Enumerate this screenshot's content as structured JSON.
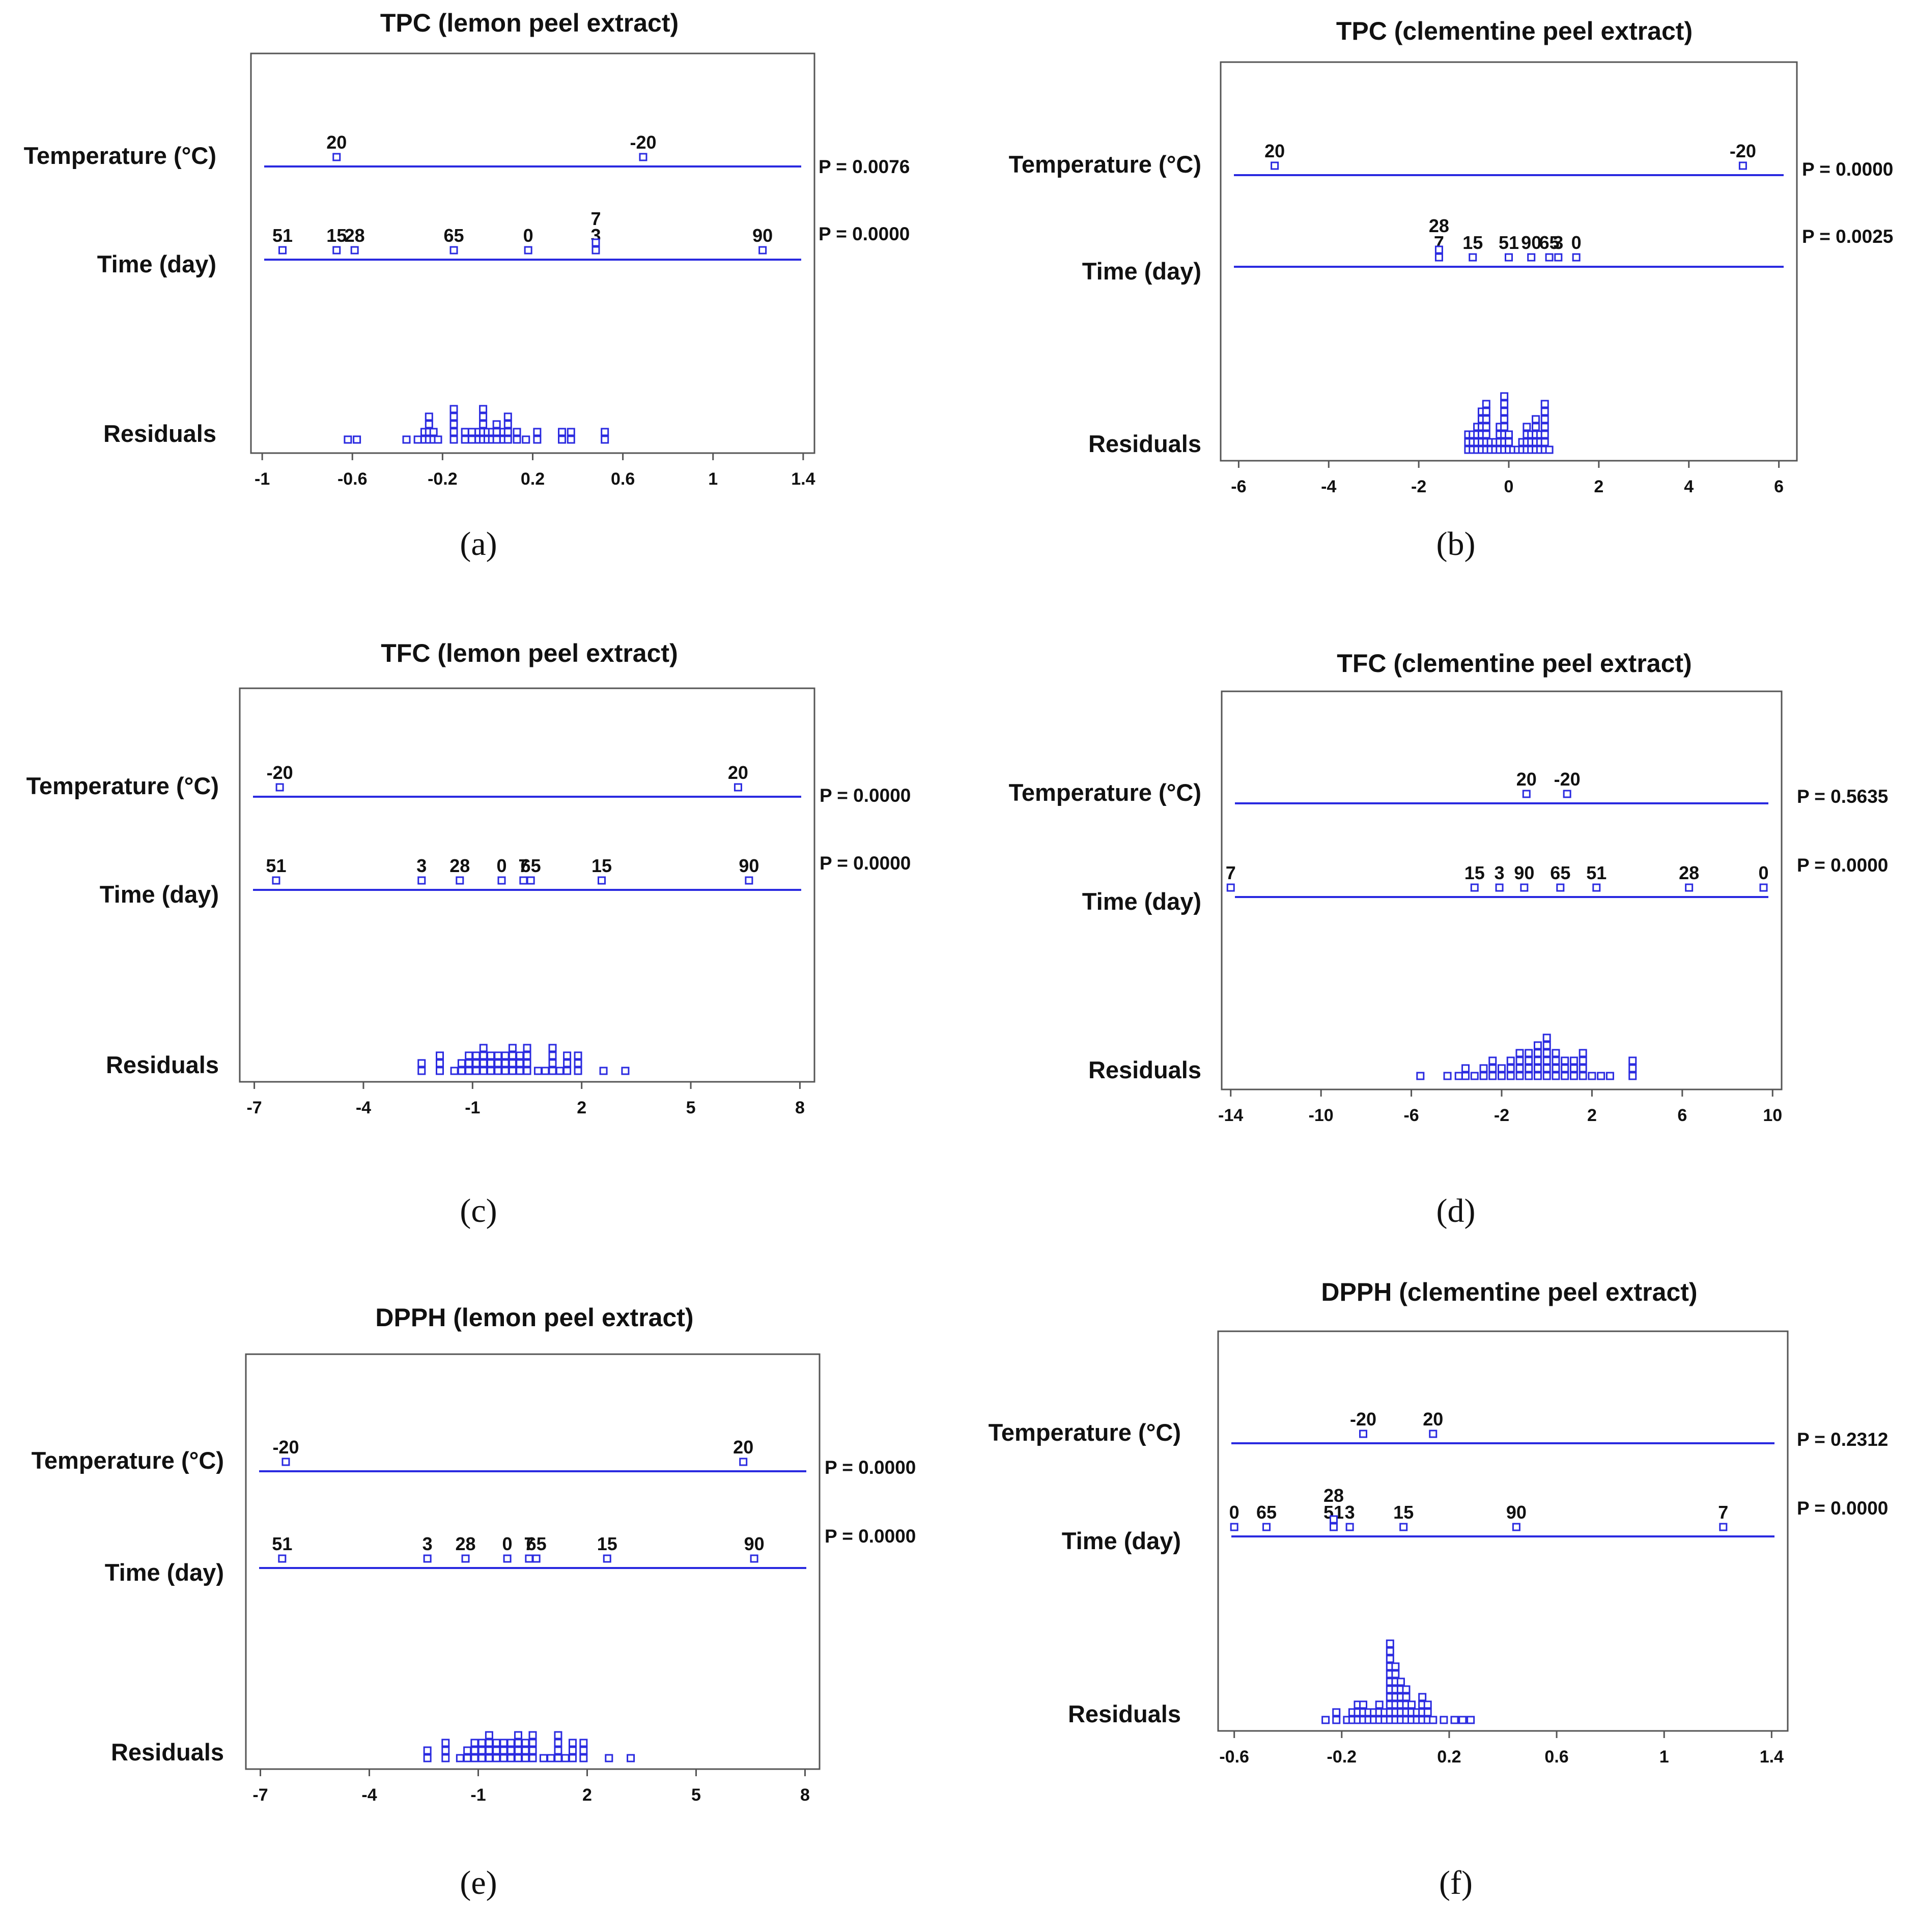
{
  "figure": {
    "panels": [
      {
        "id": "a",
        "caption": "(a)",
        "title": "TPC (lemon peel extract)",
        "row_labels": {
          "temperature": "Temperature (°C)",
          "time": "Time (day)",
          "residuals": "Residuals"
        },
        "p_values": {
          "temperature": "P = 0.0076",
          "time": "P = 0.0000"
        },
        "axis": {
          "min": -1.05,
          "max": 1.45,
          "ticks": [
            -1,
            -0.6,
            -0.2,
            0.2,
            0.6,
            1,
            1.4
          ],
          "tick_labels": [
            "-1",
            "-0.6",
            "-0.2",
            "0.2",
            "0.6",
            "1",
            "1.4"
          ]
        }
      },
      {
        "id": "b",
        "caption": "(b)",
        "title": "TPC (clementine peel extract)",
        "row_labels": {
          "temperature": "Temperature (°C)",
          "time": "Time (day)",
          "residuals": "Residuals"
        },
        "p_values": {
          "temperature": "P = 0.0000",
          "time": "P = 0.0025"
        },
        "axis": {
          "min": -6.4,
          "max": 6.4,
          "ticks": [
            -6,
            -4,
            -2,
            0,
            2,
            4,
            6
          ],
          "tick_labels": [
            "-6",
            "-4",
            "-2",
            "0",
            "2",
            "4",
            "6"
          ]
        }
      },
      {
        "id": "c",
        "caption": "(c)",
        "title": "TFC (lemon peel extract)",
        "row_labels": {
          "temperature": "Temperature (°C)",
          "time": "Time (day)",
          "residuals": "Residuals"
        },
        "p_values": {
          "temperature": "P = 0.0000",
          "time": "P = 0.0000"
        },
        "axis": {
          "min": -7.4,
          "max": 8.4,
          "ticks": [
            -7,
            -4,
            -1,
            2,
            5,
            8
          ],
          "tick_labels": [
            "-7",
            "-4",
            "-1",
            "2",
            "5",
            "8"
          ]
        }
      },
      {
        "id": "d",
        "caption": "(d)",
        "title": "TFC (clementine peel extract)",
        "row_labels": {
          "temperature": "Temperature (°C)",
          "time": "Time (day)",
          "residuals": "Residuals"
        },
        "p_values": {
          "temperature": "P = 0.5635",
          "time": "P = 0.0000"
        },
        "axis": {
          "min": -14.4,
          "max": 10.4,
          "ticks": [
            -14,
            -10,
            -6,
            -2,
            2,
            6,
            10
          ],
          "tick_labels": [
            "-14",
            "-10",
            "-6",
            "-2",
            "2",
            "6",
            "10"
          ]
        }
      },
      {
        "id": "e",
        "caption": "(e)",
        "title": "DPPH (lemon peel extract)",
        "row_labels": {
          "temperature": "Temperature (°C)",
          "time": "Time (day)",
          "residuals": "Residuals"
        },
        "p_values": {
          "temperature": "P = 0.0000",
          "time": "P = 0.0000"
        },
        "axis": {
          "min": -7.4,
          "max": 8.4,
          "ticks": [
            -7,
            -4,
            -1,
            2,
            5,
            8
          ],
          "tick_labels": [
            "-7",
            "-4",
            "-1",
            "2",
            "5",
            "8"
          ]
        }
      },
      {
        "id": "f",
        "caption": "(f)",
        "title": "DPPH (clementine peel extract)",
        "row_labels": {
          "temperature": "Temperature (°C)",
          "time": "Time (day)",
          "residuals": "Residuals"
        },
        "p_values": {
          "temperature": "P = 0.2312",
          "time": "P = 0.0000"
        },
        "axis": {
          "min": -0.66,
          "max": 1.46,
          "ticks": [
            -0.6,
            -0.2,
            0.2,
            0.6,
            1,
            1.4
          ],
          "tick_labels": [
            "-0.6",
            "-0.2",
            "0.2",
            "0.6",
            "1",
            "1.4"
          ]
        }
      }
    ]
  },
  "chart_data": [
    {
      "panel": "a",
      "type": "scatter",
      "title": "TPC (lemon peel extract)",
      "xlim": [
        -1.05,
        1.45
      ],
      "temperature": [
        {
          "label": "20",
          "x": -0.67
        },
        {
          "label": "-20",
          "x": 0.69
        }
      ],
      "time": [
        {
          "label": "51",
          "x": -0.91
        },
        {
          "label": "15",
          "x": -0.67
        },
        {
          "label": "28",
          "x": -0.59
        },
        {
          "label": "65",
          "x": -0.15
        },
        {
          "label": "0",
          "x": 0.18
        },
        {
          "label": "3",
          "x": 0.48
        },
        {
          "label": "7",
          "x": 0.48
        },
        {
          "label": "90",
          "x": 1.22
        }
      ],
      "residuals": [
        {
          "x": -0.62,
          "n": 1
        },
        {
          "x": -0.58,
          "n": 1
        },
        {
          "x": -0.36,
          "n": 1
        },
        {
          "x": -0.31,
          "n": 1
        },
        {
          "x": -0.28,
          "n": 2
        },
        {
          "x": -0.26,
          "n": 4
        },
        {
          "x": -0.24,
          "n": 2
        },
        {
          "x": -0.22,
          "n": 1
        },
        {
          "x": -0.15,
          "n": 5
        },
        {
          "x": -0.1,
          "n": 2
        },
        {
          "x": -0.07,
          "n": 2
        },
        {
          "x": -0.04,
          "n": 2
        },
        {
          "x": -0.02,
          "n": 5
        },
        {
          "x": 0.0,
          "n": 2
        },
        {
          "x": 0.02,
          "n": 2
        },
        {
          "x": 0.04,
          "n": 3
        },
        {
          "x": 0.07,
          "n": 2
        },
        {
          "x": 0.09,
          "n": 4
        },
        {
          "x": 0.13,
          "n": 2
        },
        {
          "x": 0.17,
          "n": 1
        },
        {
          "x": 0.22,
          "n": 2
        },
        {
          "x": 0.33,
          "n": 2
        },
        {
          "x": 0.37,
          "n": 2
        },
        {
          "x": 0.52,
          "n": 2
        }
      ]
    },
    {
      "panel": "b",
      "type": "scatter",
      "title": "TPC (clementine peel extract)",
      "xlim": [
        -6.4,
        6.4
      ],
      "temperature": [
        {
          "label": "20",
          "x": -5.2
        },
        {
          "label": "-20",
          "x": 5.2
        }
      ],
      "time": [
        {
          "label": "7",
          "x": -1.55
        },
        {
          "label": "28",
          "x": -1.55
        },
        {
          "label": "15",
          "x": -0.8
        },
        {
          "label": "51",
          "x": 0.0
        },
        {
          "label": "90",
          "x": 0.5
        },
        {
          "label": "65",
          "x": 0.9
        },
        {
          "label": "3",
          "x": 1.1
        },
        {
          "label": "0",
          "x": 1.5
        }
      ],
      "residuals": [
        {
          "x": -0.9,
          "n": 3
        },
        {
          "x": -0.8,
          "n": 3
        },
        {
          "x": -0.7,
          "n": 4
        },
        {
          "x": -0.6,
          "n": 6
        },
        {
          "x": -0.5,
          "n": 7
        },
        {
          "x": -0.4,
          "n": 2
        },
        {
          "x": -0.3,
          "n": 2
        },
        {
          "x": -0.2,
          "n": 4
        },
        {
          "x": -0.1,
          "n": 8
        },
        {
          "x": 0.0,
          "n": 3
        },
        {
          "x": 0.1,
          "n": 1
        },
        {
          "x": 0.2,
          "n": 1
        },
        {
          "x": 0.3,
          "n": 2
        },
        {
          "x": 0.4,
          "n": 4
        },
        {
          "x": 0.5,
          "n": 3
        },
        {
          "x": 0.6,
          "n": 5
        },
        {
          "x": 0.7,
          "n": 3
        },
        {
          "x": 0.8,
          "n": 7
        },
        {
          "x": 0.9,
          "n": 1
        }
      ]
    },
    {
      "panel": "c",
      "type": "scatter",
      "title": "TFC (lemon peel extract)",
      "xlim": [
        -7.4,
        8.4
      ],
      "temperature": [
        {
          "label": "-20",
          "x": -6.3
        },
        {
          "label": "20",
          "x": 6.3
        }
      ],
      "time": [
        {
          "label": "51",
          "x": -6.4
        },
        {
          "label": "3",
          "x": -2.4
        },
        {
          "label": "28",
          "x": -1.35
        },
        {
          "label": "0",
          "x": -0.2
        },
        {
          "label": "7",
          "x": 0.4
        },
        {
          "label": "65",
          "x": 0.6
        },
        {
          "label": "15",
          "x": 2.55
        },
        {
          "label": "90",
          "x": 6.6
        }
      ],
      "residuals": [
        {
          "x": -2.4,
          "n": 2
        },
        {
          "x": -1.9,
          "n": 3
        },
        {
          "x": -1.5,
          "n": 1
        },
        {
          "x": -1.3,
          "n": 2
        },
        {
          "x": -1.1,
          "n": 3
        },
        {
          "x": -0.9,
          "n": 3
        },
        {
          "x": -0.7,
          "n": 4
        },
        {
          "x": -0.5,
          "n": 3
        },
        {
          "x": -0.3,
          "n": 3
        },
        {
          "x": -0.1,
          "n": 3
        },
        {
          "x": 0.1,
          "n": 4
        },
        {
          "x": 0.3,
          "n": 3
        },
        {
          "x": 0.5,
          "n": 4
        },
        {
          "x": 0.8,
          "n": 1
        },
        {
          "x": 1.0,
          "n": 1
        },
        {
          "x": 1.2,
          "n": 4
        },
        {
          "x": 1.4,
          "n": 1
        },
        {
          "x": 1.6,
          "n": 3
        },
        {
          "x": 1.9,
          "n": 3
        },
        {
          "x": 2.6,
          "n": 1
        },
        {
          "x": 3.2,
          "n": 1
        }
      ]
    },
    {
      "panel": "d",
      "type": "scatter",
      "title": "TFC (clementine peel extract)",
      "xlim": [
        -14.4,
        10.4
      ],
      "temperature": [
        {
          "label": "20",
          "x": -0.9
        },
        {
          "label": "-20",
          "x": 0.9
        }
      ],
      "time": [
        {
          "label": "7",
          "x": -14.0
        },
        {
          "label": "15",
          "x": -3.2
        },
        {
          "label": "3",
          "x": -2.1
        },
        {
          "label": "90",
          "x": -1.0
        },
        {
          "label": "65",
          "x": 0.6
        },
        {
          "label": "51",
          "x": 2.2
        },
        {
          "label": "28",
          "x": 6.3
        },
        {
          "label": "0",
          "x": 9.6
        }
      ],
      "residuals": [
        {
          "x": -5.6,
          "n": 1
        },
        {
          "x": -4.4,
          "n": 1
        },
        {
          "x": -3.9,
          "n": 1
        },
        {
          "x": -3.6,
          "n": 2
        },
        {
          "x": -3.2,
          "n": 1
        },
        {
          "x": -2.8,
          "n": 2
        },
        {
          "x": -2.4,
          "n": 3
        },
        {
          "x": -2.0,
          "n": 2
        },
        {
          "x": -1.6,
          "n": 3
        },
        {
          "x": -1.2,
          "n": 4
        },
        {
          "x": -0.8,
          "n": 4
        },
        {
          "x": -0.4,
          "n": 5
        },
        {
          "x": 0.0,
          "n": 6
        },
        {
          "x": 0.4,
          "n": 4
        },
        {
          "x": 0.8,
          "n": 3
        },
        {
          "x": 1.2,
          "n": 3
        },
        {
          "x": 1.6,
          "n": 4
        },
        {
          "x": 2.0,
          "n": 1
        },
        {
          "x": 2.4,
          "n": 1
        },
        {
          "x": 2.8,
          "n": 1
        },
        {
          "x": 3.8,
          "n": 3
        }
      ]
    },
    {
      "panel": "e",
      "type": "scatter",
      "title": "DPPH (lemon peel extract)",
      "xlim": [
        -7.4,
        8.4
      ],
      "temperature": [
        {
          "label": "-20",
          "x": -6.3
        },
        {
          "label": "20",
          "x": 6.3
        }
      ],
      "time": [
        {
          "label": "51",
          "x": -6.4
        },
        {
          "label": "3",
          "x": -2.4
        },
        {
          "label": "28",
          "x": -1.35
        },
        {
          "label": "0",
          "x": -0.2
        },
        {
          "label": "7",
          "x": 0.4
        },
        {
          "label": "65",
          "x": 0.6
        },
        {
          "label": "15",
          "x": 2.55
        },
        {
          "label": "90",
          "x": 6.6
        }
      ],
      "residuals": [
        {
          "x": -2.4,
          "n": 2
        },
        {
          "x": -1.9,
          "n": 3
        },
        {
          "x": -1.5,
          "n": 1
        },
        {
          "x": -1.3,
          "n": 2
        },
        {
          "x": -1.1,
          "n": 3
        },
        {
          "x": -0.9,
          "n": 3
        },
        {
          "x": -0.7,
          "n": 4
        },
        {
          "x": -0.5,
          "n": 3
        },
        {
          "x": -0.3,
          "n": 3
        },
        {
          "x": -0.1,
          "n": 3
        },
        {
          "x": 0.1,
          "n": 4
        },
        {
          "x": 0.3,
          "n": 3
        },
        {
          "x": 0.5,
          "n": 4
        },
        {
          "x": 0.8,
          "n": 1
        },
        {
          "x": 1.0,
          "n": 1
        },
        {
          "x": 1.2,
          "n": 4
        },
        {
          "x": 1.4,
          "n": 1
        },
        {
          "x": 1.6,
          "n": 3
        },
        {
          "x": 1.9,
          "n": 3
        },
        {
          "x": 2.6,
          "n": 1
        },
        {
          "x": 3.2,
          "n": 1
        }
      ]
    },
    {
      "panel": "f",
      "type": "scatter",
      "title": "DPPH (clementine peel extract)",
      "xlim": [
        -0.66,
        1.46
      ],
      "temperature": [
        {
          "label": "-20",
          "x": -0.12
        },
        {
          "label": "20",
          "x": 0.14
        }
      ],
      "time": [
        {
          "label": "0",
          "x": -0.6
        },
        {
          "label": "65",
          "x": -0.48
        },
        {
          "label": "51",
          "x": -0.23
        },
        {
          "label": "28",
          "x": -0.23
        },
        {
          "label": "3",
          "x": -0.17
        },
        {
          "label": "15",
          "x": 0.03
        },
        {
          "label": "90",
          "x": 0.45
        },
        {
          "label": "7",
          "x": 1.22
        }
      ],
      "residuals": [
        {
          "x": -0.26,
          "n": 1
        },
        {
          "x": -0.22,
          "n": 2
        },
        {
          "x": -0.18,
          "n": 1
        },
        {
          "x": -0.16,
          "n": 2
        },
        {
          "x": -0.14,
          "n": 3
        },
        {
          "x": -0.12,
          "n": 3
        },
        {
          "x": -0.1,
          "n": 2
        },
        {
          "x": -0.08,
          "n": 2
        },
        {
          "x": -0.06,
          "n": 3
        },
        {
          "x": -0.04,
          "n": 2
        },
        {
          "x": -0.02,
          "n": 11
        },
        {
          "x": 0.0,
          "n": 8
        },
        {
          "x": 0.02,
          "n": 6
        },
        {
          "x": 0.04,
          "n": 5
        },
        {
          "x": 0.06,
          "n": 3
        },
        {
          "x": 0.08,
          "n": 2
        },
        {
          "x": 0.1,
          "n": 4
        },
        {
          "x": 0.12,
          "n": 3
        },
        {
          "x": 0.14,
          "n": 1
        },
        {
          "x": 0.18,
          "n": 1
        },
        {
          "x": 0.22,
          "n": 1
        },
        {
          "x": 0.25,
          "n": 1
        },
        {
          "x": 0.28,
          "n": 1
        }
      ]
    }
  ]
}
